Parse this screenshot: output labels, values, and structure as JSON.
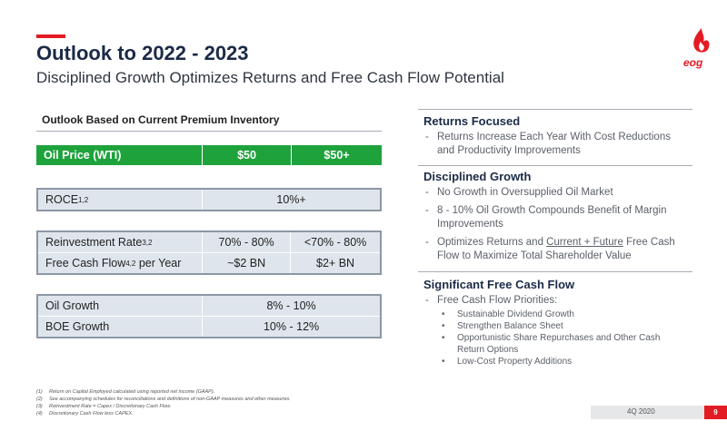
{
  "header": {
    "title": "Outlook to 2022 - 2023",
    "subtitle": "Disciplined Growth Optimizes Returns and Free Cash Flow Potential",
    "logo": "eog"
  },
  "outlook": {
    "heading": "Outlook Based on Current Premium Inventory",
    "price_row": [
      "Oil Price (WTI)",
      "$50",
      "$50+"
    ],
    "roce": {
      "label": "ROCE",
      "sup": "1,2",
      "value": "10%+"
    },
    "reinvestment": {
      "label": "Reinvestment Rate",
      "sup": "3,2",
      "values": [
        "70% - 80%",
        "<70% - 80%"
      ]
    },
    "fcf": {
      "label": "Free Cash Flow",
      "sup": "4,2",
      "suffix": " per Year",
      "values": [
        "~$2 BN",
        "$2+ BN"
      ]
    },
    "growth": [
      {
        "label": "Oil Growth",
        "value": "8% - 10%"
      },
      {
        "label": "BOE Growth",
        "value": "10% - 12%"
      }
    ]
  },
  "sections": [
    {
      "heading": "Returns Focused",
      "items": [
        "Returns Increase Each Year With Cost Reductions and Productivity Improvements"
      ]
    },
    {
      "heading": "Disciplined Growth",
      "items": [
        "No Growth in Oversupplied Oil Market",
        "8 - 10% Oil Growth Compounds Benefit of Margin Improvements"
      ],
      "item_parts": [
        "Optimizes Returns and ",
        "Current + Future",
        " Free Cash Flow to Maximize Total Shareholder Value"
      ]
    },
    {
      "heading": "Significant Free Cash Flow",
      "items": [
        "Free Cash Flow Priorities:"
      ],
      "subitems": [
        "Sustainable Dividend Growth",
        "Strengthen Balance Sheet",
        "Opportunistic Share Repurchases and Other Cash Return Options",
        "Low-Cost Property Additions"
      ]
    }
  ],
  "footnotes": [
    {
      "num": "(1)",
      "text": "Return on Capital Employed calculated using reported net income (GAAP)."
    },
    {
      "num": "(2)",
      "text": "See accompanying schedules for reconciliations and definitions of non-GAAP measures and other measures."
    },
    {
      "num": "(3)",
      "text": "Reinvestment Rate = Capex / Discretionary Cash Flow."
    },
    {
      "num": "(4)",
      "text": "Discretionary Cash Flow less CAPEX."
    }
  ],
  "footer": {
    "period": "4Q 2020",
    "page": "9"
  }
}
